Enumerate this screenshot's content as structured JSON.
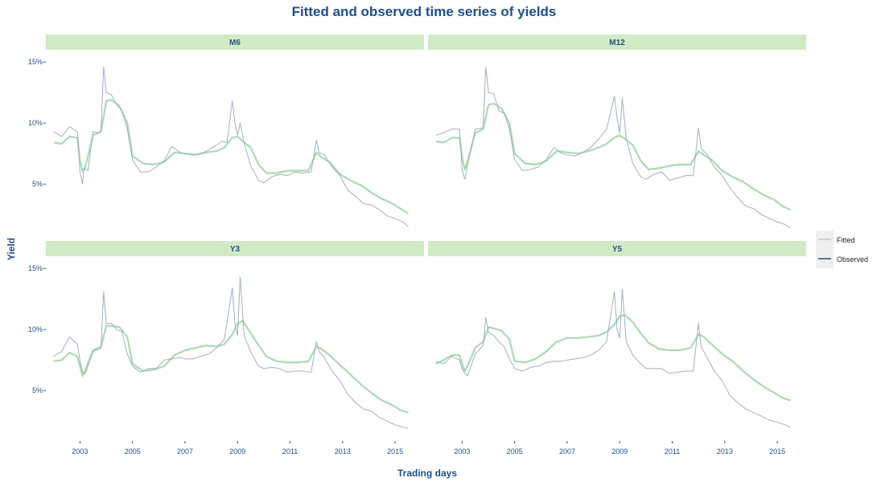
{
  "chart_data": {
    "type": "line",
    "title": "Fitted and observed time series of yields",
    "xlabel": "Trading days",
    "ylabel": "Yield",
    "xlim": [
      2001.7,
      2016.1
    ],
    "ylim": [
      1.0,
      16.0
    ],
    "x_ticks": [
      2003,
      2005,
      2007,
      2009,
      2011,
      2013,
      2015
    ],
    "x_tick_labels": [
      "2003",
      "2005",
      "2007",
      "2009",
      "2011",
      "2013",
      "2015"
    ],
    "y_ticks": [
      5,
      10,
      15
    ],
    "y_tick_labels": [
      "5%",
      "10%",
      "15%"
    ],
    "grid": false,
    "legend": {
      "position": "right",
      "entries": [
        {
          "name": "Fitted",
          "color": "#a8d8ac"
        },
        {
          "name": "Observed",
          "color": "#9aabc6"
        }
      ]
    },
    "colors": {
      "title": "#1f4e8c",
      "strip_fill": "#cfeac5",
      "fitted": "#a8d8ac",
      "observed": "#9aabc6",
      "overlap": "#5f9e8a"
    },
    "panels": [
      {
        "name": "M6",
        "series": [
          {
            "name": "Observed",
            "x": [
              2002.0,
              2002.3,
              2002.6,
              2002.9,
              2003.0,
              2003.1,
              2003.15,
              2003.3,
              2003.5,
              2003.7,
              2003.8,
              2003.9,
              2004.0,
              2004.2,
              2004.4,
              2004.6,
              2004.8,
              2005.0,
              2005.3,
              2005.6,
              2005.9,
              2006.2,
              2006.5,
              2006.8,
              2007.0,
              2007.3,
              2007.6,
              2007.9,
              2008.2,
              2008.4,
              2008.6,
              2008.8,
              2008.9,
              2009.0,
              2009.1,
              2009.25,
              2009.5,
              2009.8,
              2010.0,
              2010.3,
              2010.6,
              2010.9,
              2011.2,
              2011.5,
              2011.8,
              2012.0,
              2012.1,
              2012.3,
              2012.6,
              2012.9,
              2013.2,
              2013.5,
              2013.8,
              2014.1,
              2014.4,
              2014.7,
              2015.0,
              2015.3,
              2015.5
            ],
            "y": [
              9.3,
              8.9,
              9.7,
              9.3,
              6.0,
              5.0,
              6.3,
              6.1,
              9.3,
              9.2,
              9.4,
              14.6,
              12.5,
              12.3,
              11.5,
              11.0,
              9.5,
              7.0,
              6.0,
              6.0,
              6.4,
              6.9,
              8.1,
              7.6,
              7.5,
              7.4,
              7.5,
              7.8,
              8.2,
              8.5,
              8.4,
              11.8,
              10.0,
              9.0,
              10.0,
              8.4,
              6.5,
              5.3,
              5.1,
              5.6,
              5.8,
              5.7,
              6.0,
              5.9,
              6.0,
              8.6,
              7.6,
              7.4,
              6.4,
              5.7,
              4.5,
              4.0,
              3.4,
              3.3,
              2.9,
              2.4,
              2.2,
              1.9,
              1.5
            ]
          },
          {
            "name": "Fitted",
            "x": [
              2002.0,
              2002.3,
              2002.6,
              2002.9,
              2003.0,
              2003.1,
              2003.2,
              2003.5,
              2003.8,
              2004.0,
              2004.2,
              2004.5,
              2004.8,
              2005.0,
              2005.4,
              2005.8,
              2006.2,
              2006.6,
              2007.0,
              2007.4,
              2007.8,
              2008.2,
              2008.5,
              2008.8,
              2009.0,
              2009.2,
              2009.5,
              2009.8,
              2010.1,
              2010.5,
              2010.9,
              2011.3,
              2011.7,
              2012.0,
              2012.2,
              2012.5,
              2012.9,
              2013.3,
              2013.7,
              2014.1,
              2014.5,
              2014.9,
              2015.2,
              2015.5
            ],
            "y": [
              8.4,
              8.3,
              8.9,
              8.8,
              7.0,
              6.0,
              6.4,
              9.0,
              9.3,
              11.8,
              11.9,
              11.4,
              10.0,
              7.3,
              6.7,
              6.6,
              6.8,
              7.6,
              7.5,
              7.4,
              7.6,
              7.7,
              8.0,
              8.8,
              8.9,
              8.5,
              8.0,
              6.6,
              5.9,
              5.9,
              6.1,
              6.1,
              6.1,
              7.6,
              7.2,
              6.8,
              5.8,
              5.3,
              4.9,
              4.3,
              3.8,
              3.4,
              3.0,
              2.6
            ]
          }
        ]
      },
      {
        "name": "M12",
        "series": [
          {
            "name": "Observed",
            "x": [
              2002.0,
              2002.3,
              2002.6,
              2002.9,
              2003.0,
              2003.1,
              2003.2,
              2003.5,
              2003.8,
              2003.9,
              2004.0,
              2004.2,
              2004.4,
              2004.6,
              2004.8,
              2005.0,
              2005.3,
              2005.6,
              2005.9,
              2006.2,
              2006.5,
              2006.8,
              2007.0,
              2007.3,
              2007.6,
              2007.9,
              2008.2,
              2008.5,
              2008.8,
              2008.9,
              2009.0,
              2009.1,
              2009.25,
              2009.5,
              2009.8,
              2010.0,
              2010.3,
              2010.6,
              2010.9,
              2011.2,
              2011.5,
              2011.8,
              2012.0,
              2012.1,
              2012.3,
              2012.6,
              2012.9,
              2013.2,
              2013.5,
              2013.8,
              2014.1,
              2014.4,
              2014.7,
              2015.0,
              2015.3,
              2015.5
            ],
            "y": [
              9.0,
              9.2,
              9.5,
              9.5,
              6.2,
              5.4,
              6.5,
              9.5,
              9.6,
              14.6,
              12.5,
              12.4,
              11.0,
              10.8,
              9.5,
              7.0,
              6.1,
              6.2,
              6.4,
              7.0,
              8.0,
              7.5,
              7.4,
              7.3,
              7.6,
              8.0,
              8.7,
              9.5,
              12.2,
              10.4,
              9.2,
              12.0,
              8.7,
              6.7,
              5.6,
              5.4,
              5.8,
              6.0,
              5.3,
              5.5,
              5.7,
              5.7,
              9.6,
              7.9,
              7.5,
              6.4,
              5.7,
              4.7,
              3.9,
              3.2,
              3.0,
              2.5,
              2.2,
              1.9,
              1.7,
              1.4
            ]
          },
          {
            "name": "Fitted",
            "x": [
              2002.0,
              2002.3,
              2002.6,
              2002.9,
              2003.0,
              2003.1,
              2003.2,
              2003.5,
              2003.8,
              2004.0,
              2004.2,
              2004.5,
              2004.8,
              2005.0,
              2005.4,
              2005.8,
              2006.2,
              2006.6,
              2007.0,
              2007.4,
              2007.8,
              2008.2,
              2008.5,
              2008.8,
              2009.0,
              2009.2,
              2009.5,
              2009.8,
              2010.1,
              2010.5,
              2010.9,
              2011.3,
              2011.7,
              2012.0,
              2012.2,
              2012.5,
              2012.9,
              2013.3,
              2013.7,
              2014.1,
              2014.5,
              2014.9,
              2015.2,
              2015.5
            ],
            "y": [
              8.5,
              8.4,
              8.8,
              8.8,
              7.2,
              6.2,
              6.8,
              9.2,
              9.5,
              11.5,
              11.6,
              11.2,
              10.0,
              7.5,
              6.7,
              6.6,
              6.9,
              7.7,
              7.6,
              7.5,
              7.7,
              8.0,
              8.3,
              8.8,
              9.0,
              8.7,
              8.2,
              6.9,
              6.2,
              6.3,
              6.5,
              6.6,
              6.6,
              7.7,
              7.4,
              7.0,
              6.1,
              5.6,
              5.2,
              4.6,
              4.1,
              3.7,
              3.2,
              2.9
            ]
          }
        ]
      },
      {
        "name": "Y3",
        "series": [
          {
            "name": "Observed",
            "x": [
              2002.0,
              2002.3,
              2002.6,
              2002.9,
              2003.0,
              2003.1,
              2003.2,
              2003.5,
              2003.8,
              2003.9,
              2004.0,
              2004.2,
              2004.4,
              2004.6,
              2004.8,
              2005.0,
              2005.3,
              2005.6,
              2005.9,
              2006.2,
              2006.5,
              2006.8,
              2007.0,
              2007.3,
              2007.6,
              2007.9,
              2008.2,
              2008.5,
              2008.8,
              2008.9,
              2009.0,
              2009.1,
              2009.25,
              2009.5,
              2009.8,
              2010.0,
              2010.3,
              2010.6,
              2010.9,
              2011.2,
              2011.5,
              2011.8,
              2012.0,
              2012.1,
              2012.3,
              2012.6,
              2012.9,
              2013.2,
              2013.5,
              2013.8,
              2014.1,
              2014.4,
              2014.7,
              2015.0,
              2015.3,
              2015.5
            ],
            "y": [
              7.8,
              8.2,
              9.4,
              8.8,
              7.5,
              6.5,
              6.4,
              8.2,
              8.5,
              13.1,
              10.5,
              10.5,
              10.0,
              9.8,
              8.0,
              7.0,
              6.5,
              6.8,
              6.8,
              7.5,
              7.6,
              7.7,
              7.6,
              7.6,
              7.8,
              8.0,
              8.5,
              9.2,
              13.4,
              10.5,
              9.5,
              14.3,
              9.5,
              8.2,
              7.0,
              6.8,
              6.9,
              6.8,
              6.5,
              6.6,
              6.6,
              6.5,
              9.0,
              8.2,
              7.7,
              6.6,
              5.8,
              4.7,
              4.0,
              3.5,
              3.3,
              2.8,
              2.5,
              2.2,
              2.0,
              1.9
            ]
          },
          {
            "name": "Fitted",
            "x": [
              2002.0,
              2002.3,
              2002.6,
              2002.9,
              2003.0,
              2003.1,
              2003.2,
              2003.5,
              2003.8,
              2004.0,
              2004.2,
              2004.5,
              2004.8,
              2005.0,
              2005.4,
              2005.8,
              2006.2,
              2006.6,
              2007.0,
              2007.4,
              2007.8,
              2008.2,
              2008.5,
              2008.8,
              2009.0,
              2009.2,
              2009.5,
              2009.8,
              2010.1,
              2010.5,
              2010.9,
              2011.3,
              2011.7,
              2012.0,
              2012.2,
              2012.5,
              2012.9,
              2013.3,
              2013.7,
              2014.1,
              2014.5,
              2014.9,
              2015.2,
              2015.5
            ],
            "y": [
              7.4,
              7.5,
              8.1,
              7.8,
              7.0,
              6.2,
              6.7,
              8.3,
              8.6,
              10.3,
              10.3,
              10.2,
              9.4,
              7.2,
              6.6,
              6.7,
              7.0,
              7.9,
              8.3,
              8.5,
              8.7,
              8.6,
              8.8,
              9.6,
              10.5,
              10.7,
              9.7,
              8.7,
              7.8,
              7.4,
              7.3,
              7.3,
              7.4,
              8.6,
              8.4,
              7.9,
              7.1,
              6.3,
              5.5,
              4.8,
              4.2,
              3.8,
              3.4,
              3.2
            ]
          }
        ]
      },
      {
        "name": "Y5",
        "series": [
          {
            "name": "Observed",
            "x": [
              2002.0,
              2002.3,
              2002.6,
              2002.9,
              2003.0,
              2003.1,
              2003.2,
              2003.5,
              2003.8,
              2003.9,
              2004.0,
              2004.2,
              2004.4,
              2004.6,
              2004.8,
              2005.0,
              2005.3,
              2005.6,
              2005.9,
              2006.2,
              2006.5,
              2006.8,
              2007.0,
              2007.3,
              2007.6,
              2007.9,
              2008.2,
              2008.5,
              2008.8,
              2008.9,
              2009.0,
              2009.1,
              2009.25,
              2009.5,
              2009.8,
              2010.0,
              2010.3,
              2010.6,
              2010.9,
              2011.2,
              2011.5,
              2011.8,
              2012.0,
              2012.1,
              2012.3,
              2012.6,
              2012.9,
              2013.2,
              2013.5,
              2013.8,
              2014.1,
              2014.4,
              2014.7,
              2015.0,
              2015.3,
              2015.5
            ],
            "y": [
              7.4,
              7.2,
              7.8,
              7.5,
              6.8,
              6.4,
              6.2,
              8.0,
              8.7,
              11.0,
              9.8,
              9.5,
              9.0,
              8.6,
              7.6,
              6.8,
              6.6,
              6.9,
              7.0,
              7.3,
              7.4,
              7.4,
              7.5,
              7.6,
              7.7,
              7.9,
              8.3,
              9.0,
              13.1,
              10.0,
              9.3,
              13.3,
              9.0,
              7.9,
              7.2,
              6.8,
              6.8,
              6.8,
              6.4,
              6.5,
              6.6,
              6.6,
              10.5,
              8.6,
              7.8,
              6.6,
              5.8,
              4.6,
              4.0,
              3.5,
              3.2,
              2.9,
              2.6,
              2.4,
              2.2,
              2.0
            ]
          },
          {
            "name": "Fitted",
            "x": [
              2002.0,
              2002.3,
              2002.6,
              2002.9,
              2003.0,
              2003.1,
              2003.2,
              2003.5,
              2003.8,
              2004.0,
              2004.2,
              2004.5,
              2004.8,
              2005.0,
              2005.4,
              2005.8,
              2006.2,
              2006.6,
              2007.0,
              2007.4,
              2007.8,
              2008.2,
              2008.5,
              2008.8,
              2009.0,
              2009.2,
              2009.5,
              2009.8,
              2010.1,
              2010.5,
              2010.9,
              2011.3,
              2011.7,
              2012.0,
              2012.2,
              2012.5,
              2012.9,
              2013.3,
              2013.7,
              2014.1,
              2014.5,
              2014.9,
              2015.2,
              2015.5
            ],
            "y": [
              7.2,
              7.5,
              7.9,
              7.9,
              7.2,
              6.6,
              7.0,
              8.5,
              9.0,
              10.2,
              10.1,
              9.9,
              9.2,
              7.4,
              7.3,
              7.6,
              8.2,
              9.0,
              9.3,
              9.3,
              9.4,
              9.5,
              9.8,
              10.4,
              11.1,
              11.2,
              10.6,
              9.7,
              8.9,
              8.4,
              8.3,
              8.3,
              8.5,
              9.6,
              9.4,
              8.8,
              8.0,
              7.4,
              6.6,
              5.9,
              5.3,
              4.8,
              4.4,
              4.2
            ]
          }
        ]
      }
    ]
  }
}
